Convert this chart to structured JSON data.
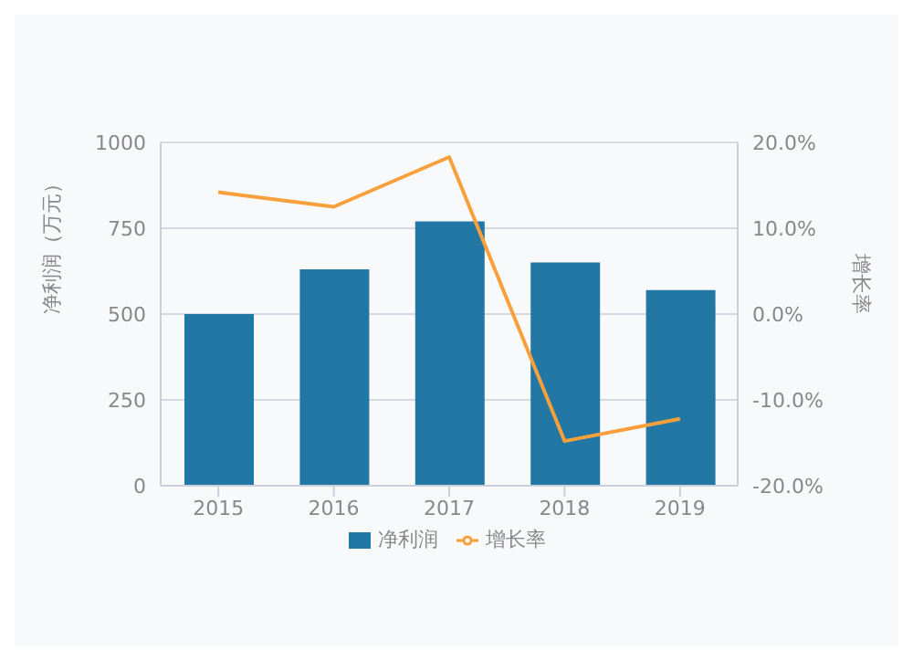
{
  "chart_data": {
    "type": "bar",
    "categories": [
      "2015",
      "2016",
      "2017",
      "2018",
      "2019"
    ],
    "series": [
      {
        "name": "净利润",
        "color": "#2277a5",
        "values": [
          500,
          630,
          770,
          650,
          570
        ]
      },
      {
        "name": "增长率",
        "type": "line",
        "color": "#f7a03c",
        "axis": "y2",
        "values": [
          14.2,
          12.5,
          18.3,
          -14.8,
          -12.2
        ]
      }
    ],
    "ylabel": "净利润（万元）",
    "y2label": "增长率",
    "ylim": [
      0,
      1000
    ],
    "yticks": [
      0,
      250,
      500,
      750,
      1000
    ],
    "y2lim": [
      -20,
      20
    ],
    "y2ticks": [
      {
        "value": -20,
        "label": "-20.0%"
      },
      {
        "value": -10,
        "label": "-10.0%"
      },
      {
        "value": 0,
        "label": "0.0%"
      },
      {
        "value": 10,
        "label": "10.0%"
      },
      {
        "value": 20,
        "label": "20.0%"
      }
    ],
    "grid": "y",
    "legend": "bottom",
    "marker": "none"
  }
}
